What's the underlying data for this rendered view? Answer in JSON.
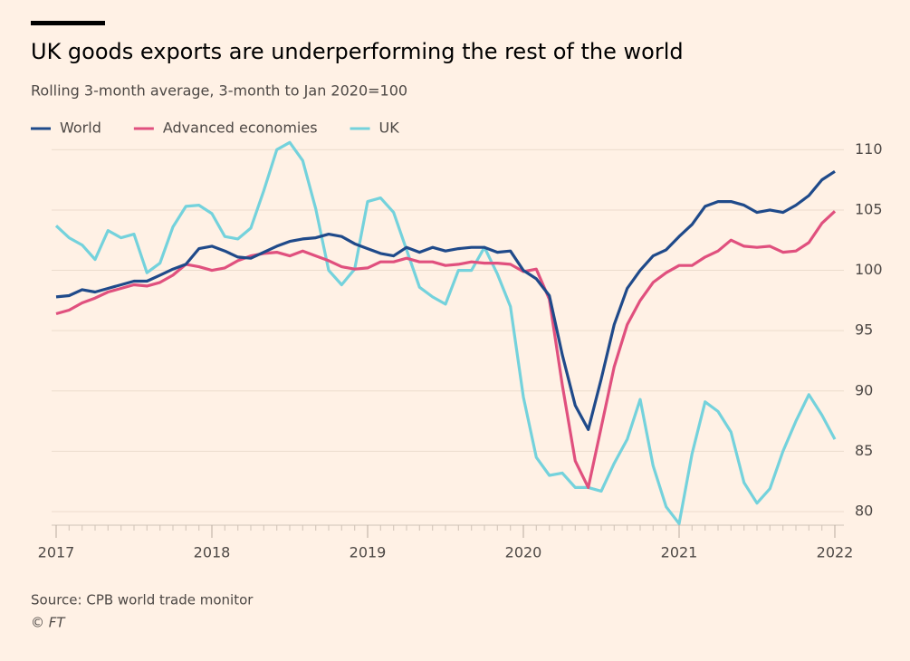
{
  "chart_data": {
    "type": "line",
    "title": "UK goods exports are underperforming the rest of the world",
    "subtitle": "Rolling 3-month average, 3-month to Jan 2020=100",
    "source": "Source: CPB world trade monitor",
    "credit": "© FT",
    "x": [
      2017,
      2017.083,
      2017.167,
      2017.25,
      2017.333,
      2017.417,
      2017.5,
      2017.583,
      2017.667,
      2017.75,
      2017.833,
      2017.917,
      2018,
      2018.083,
      2018.167,
      2018.25,
      2018.333,
      2018.417,
      2018.5,
      2018.583,
      2018.667,
      2018.75,
      2018.833,
      2018.917,
      2019,
      2019.083,
      2019.167,
      2019.25,
      2019.333,
      2019.417,
      2019.5,
      2019.583,
      2019.667,
      2019.75,
      2019.833,
      2019.917,
      2020,
      2020.083,
      2020.167,
      2020.25,
      2020.333,
      2020.417,
      2020.5,
      2020.583,
      2020.667,
      2020.75,
      2020.833,
      2020.917,
      2021,
      2021.083,
      2021.167,
      2021.25,
      2021.333,
      2021.417,
      2021.5,
      2021.583,
      2021.667,
      2021.75,
      2021.833,
      2021.917,
      2022
    ],
    "series": [
      {
        "name": "World",
        "color": "#1f4a8a",
        "values": [
          97.8,
          97.9,
          98.4,
          98.2,
          98.5,
          98.8,
          99.1,
          99.1,
          99.6,
          100.1,
          100.5,
          101.8,
          102.0,
          101.6,
          101.1,
          101.0,
          101.5,
          102.0,
          102.4,
          102.6,
          102.7,
          103.0,
          102.8,
          102.2,
          101.8,
          101.4,
          101.2,
          101.9,
          101.5,
          101.9,
          101.6,
          101.8,
          101.9,
          101.9,
          101.5,
          101.6,
          100.0,
          99.3,
          97.9,
          93.0,
          88.8,
          86.8,
          91.0,
          95.5,
          98.5,
          100.0,
          101.2,
          101.7,
          102.8,
          103.8,
          105.3,
          105.7,
          105.7,
          105.4,
          104.8,
          105.0,
          104.8,
          105.4,
          106.2,
          107.5,
          108.2
        ]
      },
      {
        "name": "Advanced economies",
        "color": "#e0507e",
        "values": [
          96.4,
          96.7,
          97.3,
          97.7,
          98.2,
          98.5,
          98.8,
          98.7,
          99.0,
          99.6,
          100.5,
          100.3,
          100.0,
          100.2,
          100.8,
          101.2,
          101.4,
          101.5,
          101.2,
          101.6,
          101.2,
          100.8,
          100.3,
          100.1,
          100.2,
          100.7,
          100.7,
          101.0,
          100.7,
          100.7,
          100.4,
          100.5,
          100.7,
          100.6,
          100.6,
          100.5,
          99.9,
          100.1,
          97.6,
          90.5,
          84.2,
          82.0,
          87.0,
          92.0,
          95.5,
          97.5,
          99.0,
          99.8,
          100.4,
          100.4,
          101.1,
          101.6,
          102.5,
          102.0,
          101.9,
          102.0,
          101.5,
          101.6,
          102.3,
          103.9,
          104.9
        ]
      },
      {
        "name": "UK",
        "color": "#74d2dc",
        "values": [
          103.7,
          102.7,
          102.1,
          100.9,
          103.3,
          102.7,
          103.0,
          99.8,
          100.6,
          103.6,
          105.3,
          105.4,
          104.7,
          102.8,
          102.6,
          103.5,
          106.6,
          110.0,
          110.6,
          109.1,
          105.1,
          100.0,
          98.8,
          100.1,
          105.7,
          106.0,
          104.8,
          101.7,
          98.6,
          97.8,
          97.2,
          100.0,
          100.0,
          101.9,
          99.7,
          97.0,
          89.5,
          84.5,
          83.0,
          83.2,
          82.0,
          82.0,
          81.7,
          84.0,
          86.0,
          89.3,
          83.8,
          80.4,
          79.0,
          84.8,
          89.1,
          88.3,
          86.6,
          82.4,
          80.7,
          81.9,
          85.0,
          87.5,
          89.7,
          88.0,
          86.0
        ]
      }
    ],
    "xlim": [
      2017,
      2022
    ],
    "xticks": [
      2017,
      2018,
      2019,
      2020,
      2021,
      2022
    ],
    "ylim": [
      78.5,
      111
    ],
    "yticks": [
      80,
      85,
      90,
      95,
      100,
      105,
      110
    ],
    "grid": true,
    "legend": "top-left"
  }
}
